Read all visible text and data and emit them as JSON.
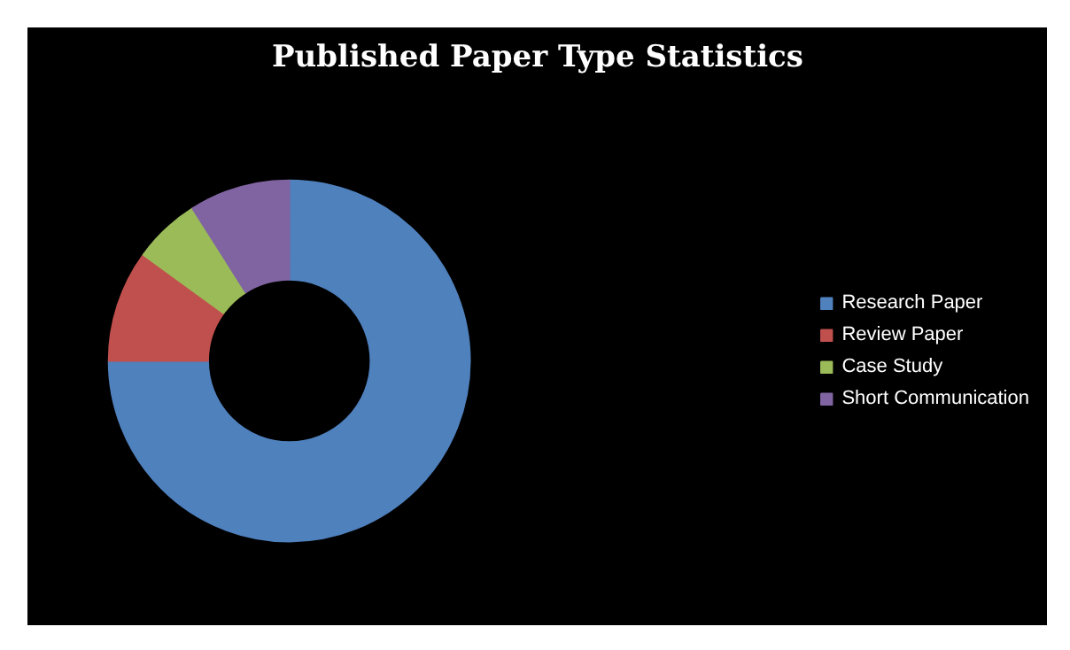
{
  "chart_data": {
    "type": "donut",
    "title": "Published Paper Type Statistics",
    "categories": [
      "Research Paper",
      "Review Paper",
      "Case Study",
      "Short Communication"
    ],
    "values": [
      75,
      10,
      6,
      9
    ],
    "colors": [
      "#4f81bd",
      "#c0504d",
      "#9bbb59",
      "#8064a2"
    ],
    "legend": "right"
  }
}
